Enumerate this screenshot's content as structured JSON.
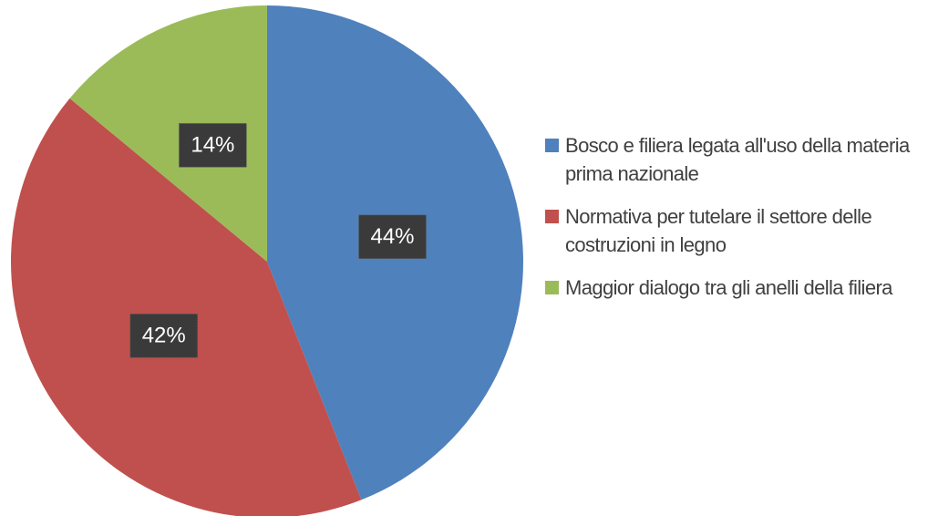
{
  "chart_data": {
    "type": "pie",
    "categories": [
      "Bosco e filiera legata all'uso della materia prima nazionale",
      "Normativa per tutelare il settore delle costruzioni in legno",
      "Maggior dialogo tra gli anelli della filiera"
    ],
    "values": [
      44,
      42,
      14
    ],
    "value_labels": [
      "44%",
      "42%",
      "14%"
    ],
    "colors": [
      "#4f81bd",
      "#c0504d",
      "#9bbb59"
    ],
    "legend": "right"
  }
}
